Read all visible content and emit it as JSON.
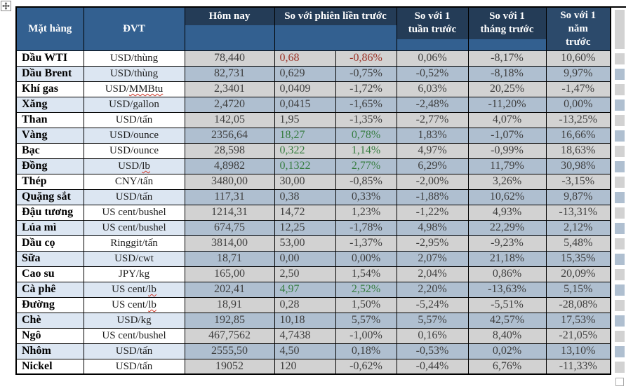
{
  "document": {
    "type": "word-table-screenshot",
    "language": "vi"
  },
  "colors": {
    "header_steel_blue": "#336090",
    "header_navy_band": "#243C57",
    "header_navy_solid": "#2C4A6B",
    "row_alt_light_blue": "#DCE6F2",
    "cell_gray": "#D2D2D2",
    "cell_blue_gray": "#AFBFD0",
    "negative_red": "#9C3328",
    "positive_green": "#377D41",
    "number_ink": "#3F3F3F"
  },
  "header": {
    "item": "Mặt hàng",
    "unit": "ĐVT",
    "today": "Hôm nay",
    "prev_session": "So với phiên liền trước",
    "week": "So với 1\ntuần trước",
    "month": "So với 1\ntháng trước",
    "year": "So với 1\nnăm\ntrước"
  },
  "handles": {
    "move_icon": "table-move-handle-icon",
    "resize_icon": "table-resize-handle-icon"
  },
  "table": {
    "rows": [
      {
        "name": "Dầu WTI",
        "unit": "USD/thùng",
        "unit_err": "",
        "today": "78,440",
        "change": "0,68",
        "change_pct": "-0,86%",
        "week": "0,06%",
        "month": "-8,17%",
        "year": "10,60%",
        "trend": "down"
      },
      {
        "name": "Dầu Brent",
        "unit": "USD/thùng",
        "unit_err": "",
        "today": "82,731",
        "change": "0,629",
        "change_pct": "-0,75%",
        "week": "-0,52%",
        "month": "-8,18%",
        "year": "9,97%",
        "trend": "none"
      },
      {
        "name": "Khí gas",
        "unit": "USD/",
        "unit_err": "MMBtu",
        "today": "2,3401",
        "change": "0,0409",
        "change_pct": "-1,72%",
        "week": "6,03%",
        "month": "20,25%",
        "year": "-1,47%",
        "trend": "none"
      },
      {
        "name": "Xăng",
        "unit": "USD/gallon",
        "unit_err": "",
        "today": "2,4720",
        "change": "0,0415",
        "change_pct": "-1,65%",
        "week": "-2,48%",
        "month": "-11,20%",
        "year": "0,00%",
        "trend": "none"
      },
      {
        "name": "Than",
        "unit": "USD/tấn",
        "unit_err": "",
        "today": "142,05",
        "change": "1,95",
        "change_pct": "-1,35%",
        "week": "-2,77%",
        "month": "4,07%",
        "year": "-13,25%",
        "trend": "none"
      },
      {
        "name": "Vàng",
        "unit": "USD/ounce",
        "unit_err": "",
        "today": "2356,64",
        "change": "18,27",
        "change_pct": "0,78%",
        "week": "1,83%",
        "month": "-1,07%",
        "year": "16,66%",
        "trend": "up"
      },
      {
        "name": "Bạc",
        "unit": "USD/ounce",
        "unit_err": "",
        "today": "28,598",
        "change": "0,322",
        "change_pct": "1,14%",
        "week": "4,97%",
        "month": "-0,99%",
        "year": "18,63%",
        "trend": "up"
      },
      {
        "name": "Đồng",
        "unit": "USD/",
        "unit_err": "lb",
        "today": "4,8982",
        "change": "0,1322",
        "change_pct": "2,77%",
        "week": "6,29%",
        "month": "11,79%",
        "year": "30,98%",
        "trend": "up"
      },
      {
        "name": "Thép",
        "unit": "CNY/tấn",
        "unit_err": "",
        "today": "3480,00",
        "change": "30,00",
        "change_pct": "-0,85%",
        "week": "-2,00%",
        "month": "3,26%",
        "year": "-3,15%",
        "trend": "none"
      },
      {
        "name": "Quặng sắt",
        "unit": "USD/tấn",
        "unit_err": "",
        "today": "117,31",
        "change": "0,38",
        "change_pct": "0,33%",
        "week": "-1,88%",
        "month": "10,62%",
        "year": "9,87%",
        "trend": "none"
      },
      {
        "name": "Đậu tương",
        "unit": "US cent/bushel",
        "unit_err": "",
        "today": "1214,31",
        "change": "14,72",
        "change_pct": "1,23%",
        "week": "-1,22%",
        "month": "4,93%",
        "year": "-13,31%",
        "trend": "none"
      },
      {
        "name": "Lúa mì",
        "unit": "US cent/bushel",
        "unit_err": "",
        "today": "674,75",
        "change": "12,25",
        "change_pct": "-1,78%",
        "week": "4,98%",
        "month": "22,29%",
        "year": "2,12%",
        "trend": "none"
      },
      {
        "name": "Dầu cọ",
        "unit": "Ringgit/tấn",
        "unit_err": "",
        "today": "3814,00",
        "change": "53,00",
        "change_pct": "-1,37%",
        "week": "-2,95%",
        "month": "-9,23%",
        "year": "5,48%",
        "trend": "none"
      },
      {
        "name": "Sữa",
        "unit": "USD/cwt",
        "unit_err": "",
        "today": "18,71",
        "change": "0,00",
        "change_pct": "0,00%",
        "week": "2,07%",
        "month": "21,18%",
        "year": "15,35%",
        "trend": "none"
      },
      {
        "name": "Cao su",
        "unit": "JPY/kg",
        "unit_err": "",
        "today": "165,00",
        "change": "2,50",
        "change_pct": "1,54%",
        "week": "2,04%",
        "month": "0,86%",
        "year": "20,09%",
        "trend": "none"
      },
      {
        "name": "Cà phê",
        "unit": "US cent/",
        "unit_err": "lb",
        "today": "202,41",
        "change": "4,97",
        "change_pct": "2,52%",
        "week": "2,20%",
        "month": "-13,63%",
        "year": "5,15%",
        "trend": "up"
      },
      {
        "name": "Đường",
        "unit": "US cent/",
        "unit_err": "lb",
        "today": "18,91",
        "change": "0,28",
        "change_pct": "1,50%",
        "week": "-5,24%",
        "month": "-5,51%",
        "year": "-28,08%",
        "trend": "none"
      },
      {
        "name": "Chè",
        "unit": "USD/kg",
        "unit_err": "",
        "today": "192,85",
        "change": "10,18",
        "change_pct": "5,57%",
        "week": "5,57%",
        "month": "42,57%",
        "year": "17,53%",
        "trend": "none"
      },
      {
        "name": "Ngô",
        "unit": "US cent/bushel",
        "unit_err": "",
        "today": "467,7562",
        "change": "4,7438",
        "change_pct": "-1,00%",
        "week": "0,16%",
        "month": "8,40%",
        "year": "-21,05%",
        "trend": "none"
      },
      {
        "name": "Nhôm",
        "unit": "USD/tấn",
        "unit_err": "",
        "today": "2555,50",
        "change": "4,50",
        "change_pct": "0,18%",
        "week": "-0,53%",
        "month": "0,02%",
        "year": "13,10%",
        "trend": "none"
      },
      {
        "name": "Nickel",
        "unit": "USD/tấn",
        "unit_err": "",
        "today": "19052",
        "change": "120",
        "change_pct": "-0,62%",
        "week": "-0,44%",
        "month": "6,76%",
        "year": "-11,33%",
        "trend": "none"
      }
    ]
  }
}
